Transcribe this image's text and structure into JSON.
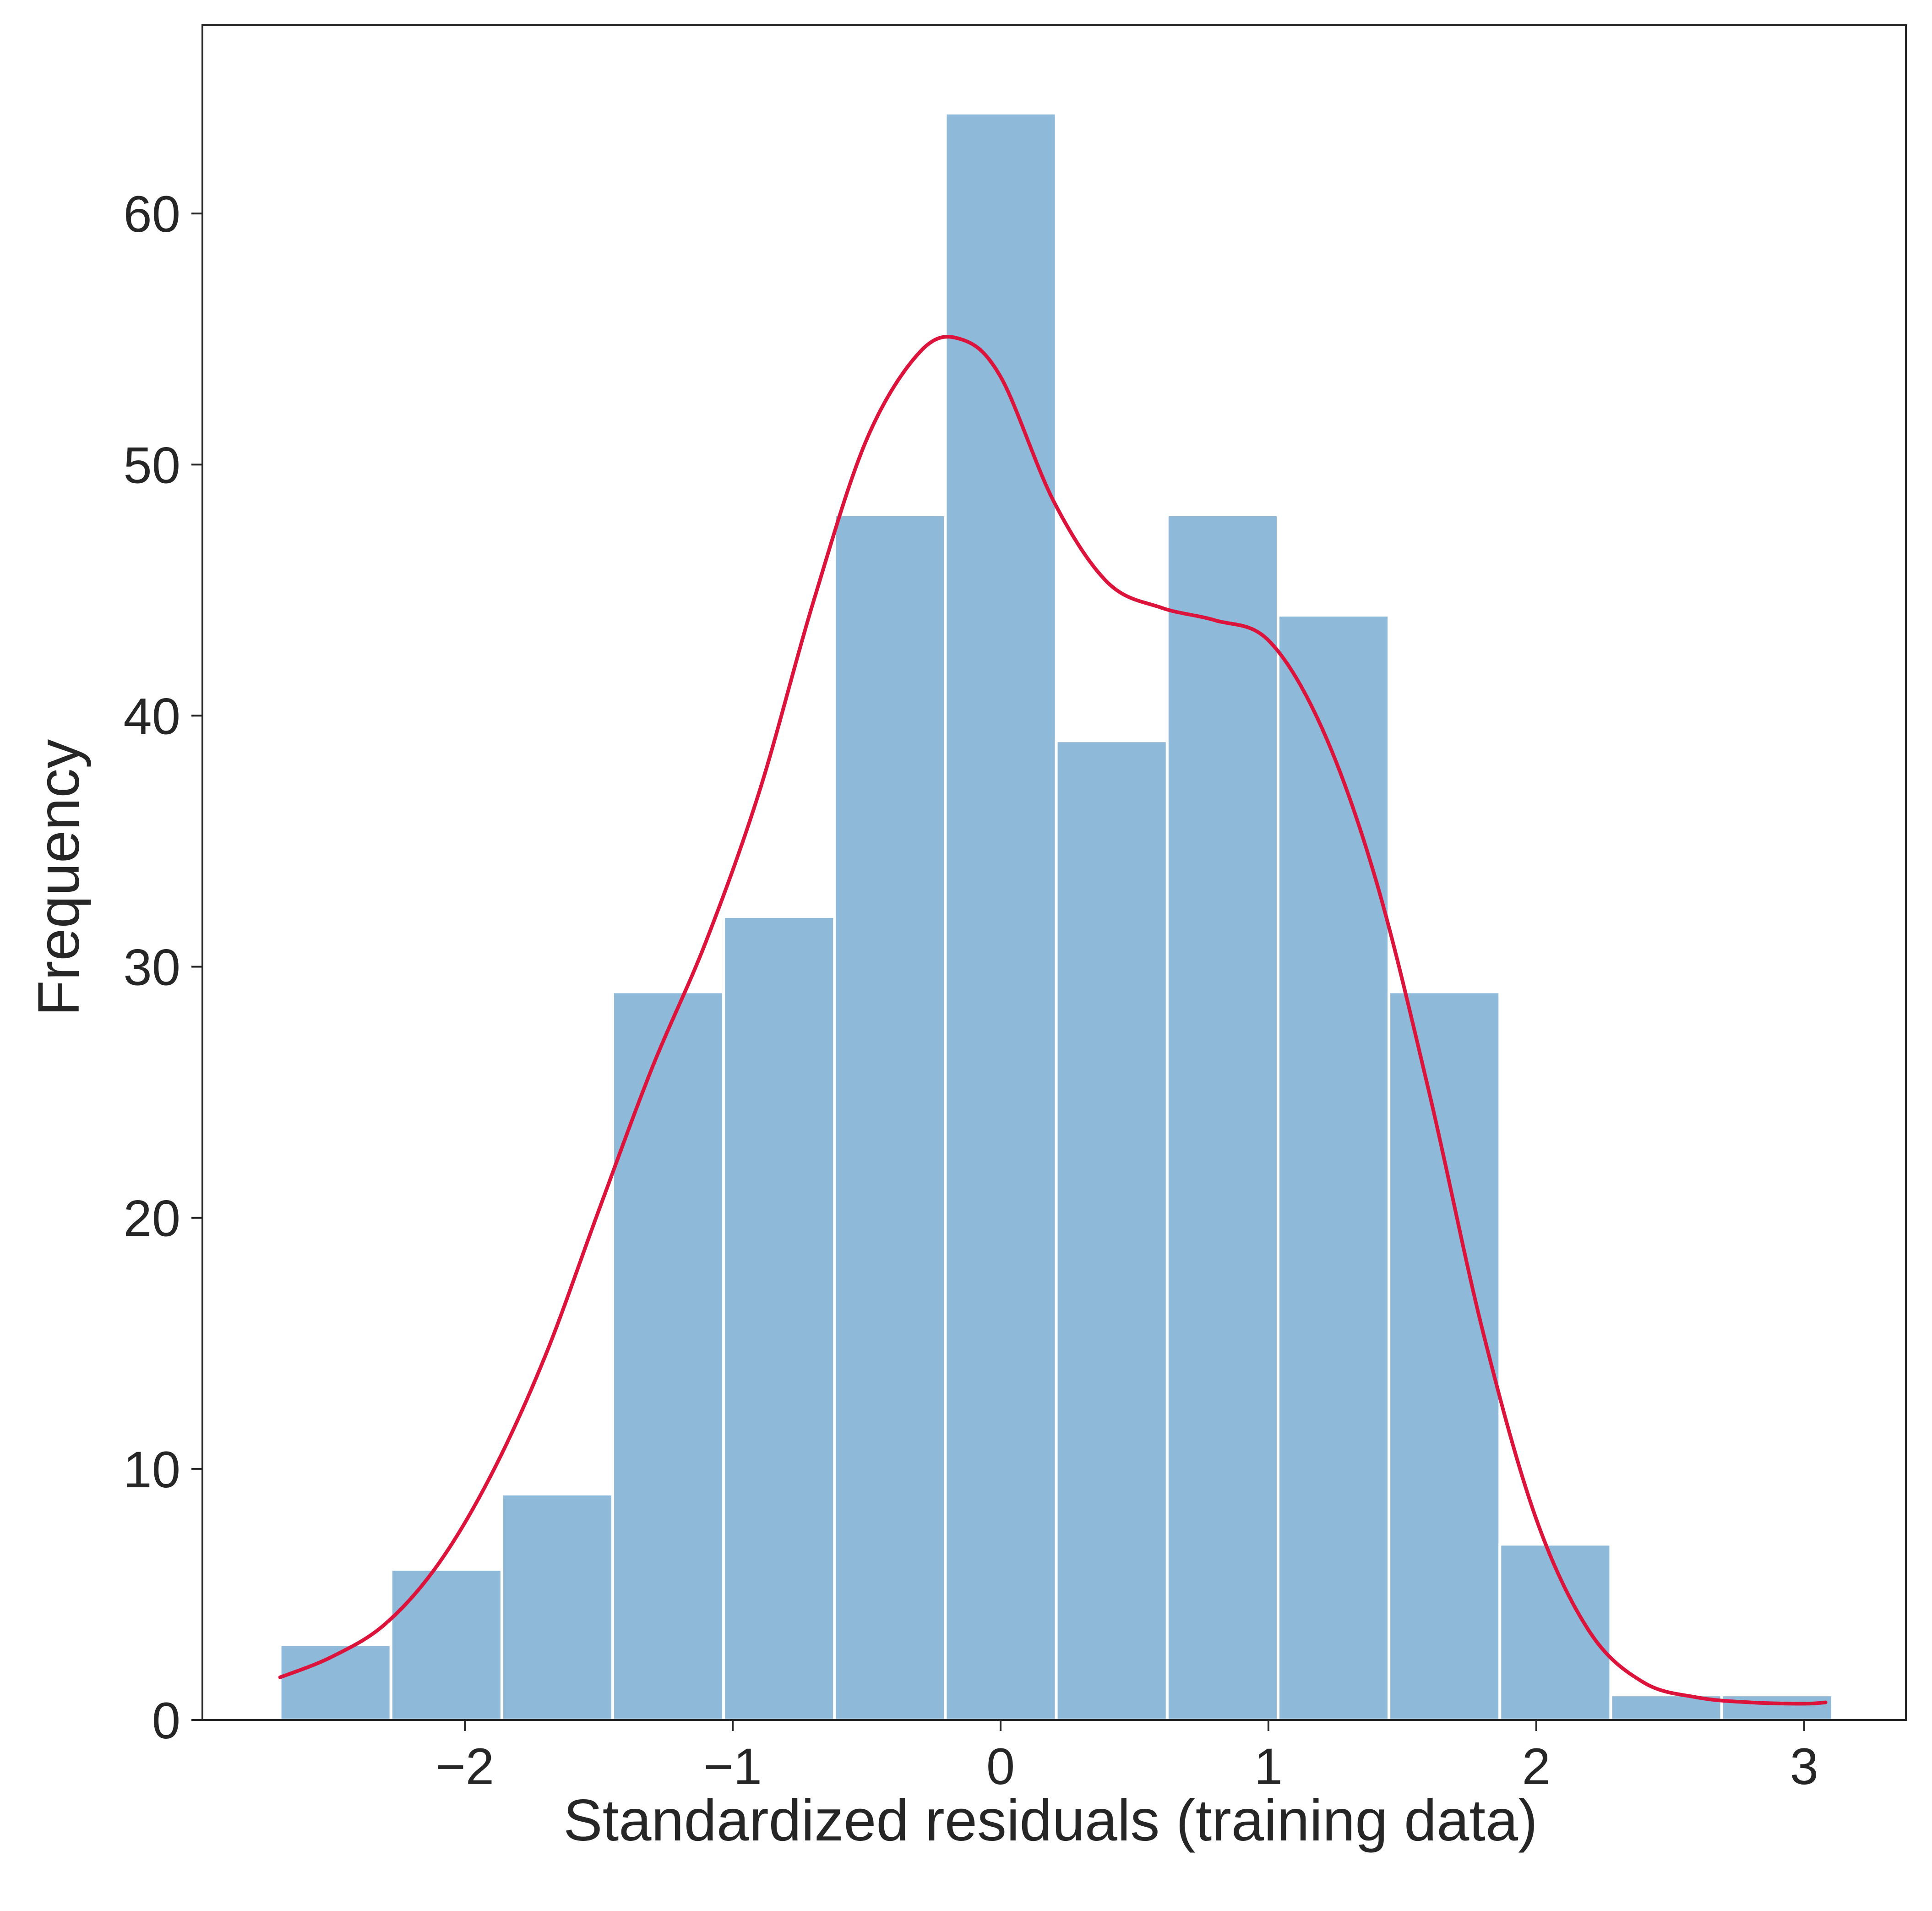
{
  "chart_data": {
    "type": "bar",
    "title": "",
    "xlabel": "Standardized residuals (training data)",
    "ylabel": "Frequency",
    "xlim": [
      -2.98,
      3.38
    ],
    "ylim": [
      0,
      67.5
    ],
    "xticks": [
      -2,
      -1,
      0,
      1,
      2,
      3
    ],
    "xtick_labels": [
      "−2",
      "−1",
      "0",
      "1",
      "2",
      "3"
    ],
    "yticks": [
      0,
      10,
      20,
      30,
      40,
      50,
      60
    ],
    "ytick_labels": [
      "0",
      "10",
      "20",
      "30",
      "40",
      "50",
      "60"
    ],
    "grid": false,
    "legend": "none",
    "bar_color": "#8fb9d9",
    "bar_edge_color": "#ffffff",
    "kde_color": "#dc143c",
    "bins": [
      {
        "x0": -2.69,
        "x1": -2.276,
        "count": 3
      },
      {
        "x0": -2.276,
        "x1": -1.862,
        "count": 6
      },
      {
        "x0": -1.862,
        "x1": -1.448,
        "count": 9
      },
      {
        "x0": -1.448,
        "x1": -1.034,
        "count": 29
      },
      {
        "x0": -1.034,
        "x1": -0.62,
        "count": 32
      },
      {
        "x0": -0.62,
        "x1": -0.206,
        "count": 48
      },
      {
        "x0": -0.206,
        "x1": 0.208,
        "count": 64
      },
      {
        "x0": 0.208,
        "x1": 0.622,
        "count": 39
      },
      {
        "x0": 0.622,
        "x1": 1.036,
        "count": 48
      },
      {
        "x0": 1.036,
        "x1": 1.45,
        "count": 44
      },
      {
        "x0": 1.45,
        "x1": 1.864,
        "count": 29
      },
      {
        "x0": 1.864,
        "x1": 2.278,
        "count": 7
      },
      {
        "x0": 2.278,
        "x1": 2.692,
        "count": 1
      },
      {
        "x0": 2.692,
        "x1": 3.106,
        "count": 1
      }
    ],
    "kde_series": {
      "x": [
        -2.69,
        -2.5,
        -2.3,
        -2.1,
        -1.9,
        -1.7,
        -1.5,
        -1.3,
        -1.1,
        -0.9,
        -0.7,
        -0.5,
        -0.3,
        -0.15,
        0.0,
        0.2,
        0.4,
        0.6,
        0.8,
        1.0,
        1.2,
        1.4,
        1.6,
        1.8,
        2.0,
        2.2,
        2.4,
        2.6,
        2.8,
        3.0,
        3.08
      ],
      "y": [
        1.7,
        2.5,
        3.8,
        6.2,
        9.8,
        14.5,
        20.3,
        26.0,
        31.0,
        37.0,
        44.5,
        51.0,
        54.5,
        55.0,
        53.5,
        48.5,
        45.3,
        44.3,
        43.8,
        43.0,
        39.5,
        33.5,
        25.0,
        15.5,
        8.0,
        3.5,
        1.5,
        0.9,
        0.7,
        0.65,
        0.7
      ]
    }
  }
}
